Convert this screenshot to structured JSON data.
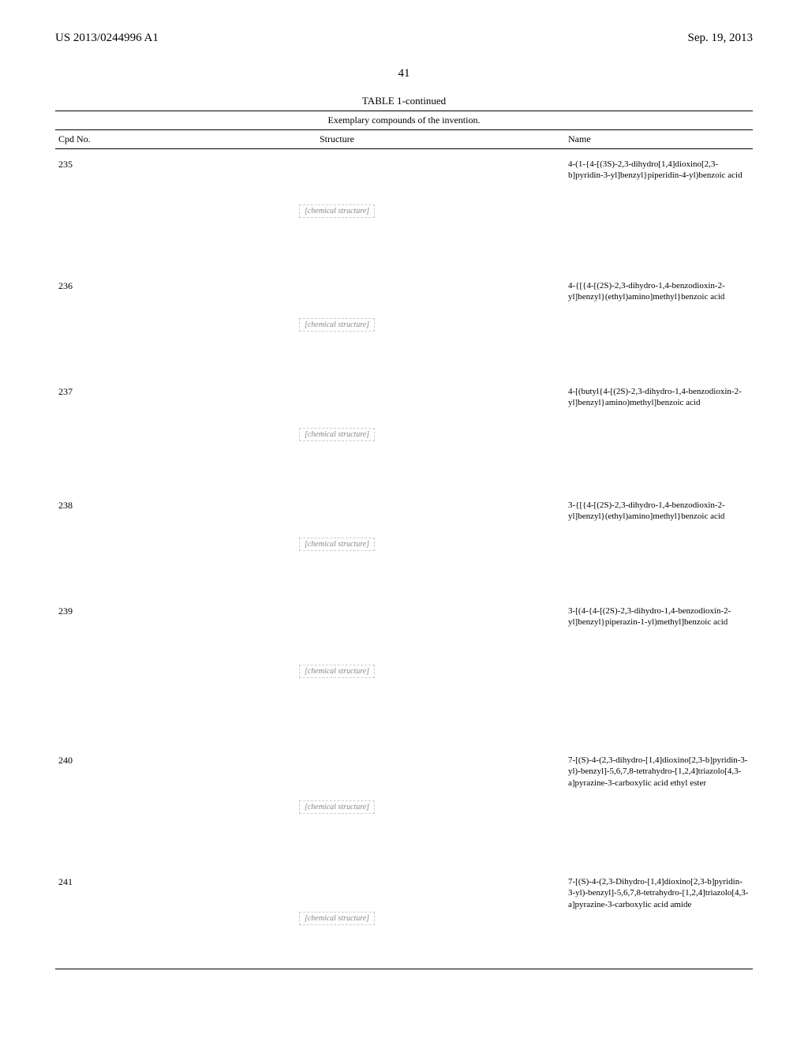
{
  "header": {
    "pub_number": "US 2013/0244996 A1",
    "pub_date": "Sep. 19, 2013"
  },
  "page_number": "41",
  "table": {
    "title": "TABLE 1-continued",
    "subtitle": "Exemplary compounds of the invention.",
    "columns": {
      "cpd": "Cpd No.",
      "structure": "Structure",
      "name": "Name"
    },
    "rows": [
      {
        "cpd": "235",
        "structure_height": 140,
        "structure_placeholder": "[chemical structure]",
        "name": "4-(1-{4-[(3S)-2,3-dihydro[1,4]dioxino[2,3-b]pyridin-3-yl]benzyl}piperidin-4-yl)benzoic acid"
      },
      {
        "cpd": "236",
        "structure_height": 120,
        "structure_placeholder": "[chemical structure]",
        "name": "4-{[{4-[(2S)-2,3-dihydro-1,4-benzodioxin-2-yl]benzyl}(ethyl)amino]methyl}benzoic acid"
      },
      {
        "cpd": "237",
        "structure_height": 130,
        "structure_placeholder": "[chemical structure]",
        "name": "4-[(butyl{4-[(2S)-2,3-dihydro-1,4-benzodioxin-2-yl]benzyl}amino)methyl]benzoic acid"
      },
      {
        "cpd": "238",
        "structure_height": 120,
        "structure_placeholder": "[chemical structure]",
        "name": "3-{[{4-[(2S)-2,3-dihydro-1,4-benzodioxin-2-yl]benzyl}(ethyl)amino]methyl}benzoic acid"
      },
      {
        "cpd": "239",
        "structure_height": 175,
        "structure_placeholder": "[chemical structure]",
        "name": "3-[(4-{4-[(2S)-2,3-dihydro-1,4-benzodioxin-2-yl]benzyl}piperazin-1-yl)methyl]benzoic acid"
      },
      {
        "cpd": "240",
        "structure_height": 140,
        "structure_placeholder": "[chemical structure]",
        "name": "7-[(S)-4-(2,3-dihydro-[1,4]dioxino[2,3-b]pyridin-3-yl)-benzyl]-5,6,7,8-tetrahydro-[1,2,4]triazolo[4,3-a]pyrazine-3-carboxylic acid ethyl ester"
      },
      {
        "cpd": "241",
        "structure_height": 115,
        "structure_placeholder": "[chemical structure]",
        "name": "7-[(S)-4-(2,3-Dihydro-[1,4]dioxino[2,3-b]pyridin-3-yl)-benzyl]-5,6,7,8-tetrahydro-[1,2,4]triazolo[4,3-a]pyrazine-3-carboxylic acid amide"
      }
    ]
  }
}
